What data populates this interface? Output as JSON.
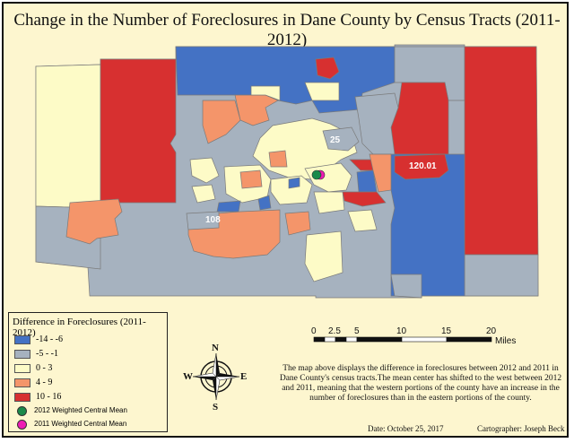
{
  "title": "Change in the Number of Foreclosures in Dane County by Census Tracts (2011-2012)",
  "legend": {
    "heading": "Difference in Foreclosures (2011-2012)",
    "classes": [
      {
        "label": "-14 - -6",
        "color": "#4472c4"
      },
      {
        "label": "-5 - -1",
        "color": "#a6b2bf"
      },
      {
        "label": "0 - 3",
        "color": "#fdfbc7"
      },
      {
        "label": "4 - 9",
        "color": "#f4956a"
      },
      {
        "label": "10 - 16",
        "color": "#d73030"
      }
    ],
    "points": [
      {
        "label": "2012 Weighted Central Mean",
        "color": "#1a8a4a"
      },
      {
        "label": "2011 Weighted Central Mean",
        "color": "#ee1cb4"
      }
    ]
  },
  "tract_labels": [
    "25",
    "120.01",
    "108"
  ],
  "scale_bar": {
    "ticks": [
      "0",
      "2.5",
      "5",
      "10",
      "15",
      "20"
    ],
    "unit": "Miles"
  },
  "north_arrow": {
    "n": "N",
    "s": "S",
    "e": "E",
    "w": "W"
  },
  "description": "The map above displays the difference in foreclosures between 2012 and 2011 in Dane County's census tracts.The mean center has shifted to the west between 2012 and 2011, meaning that the western portions of the county have an increase in the number of foreclosures than in the eastern portions of the county.",
  "footer": {
    "date": "Date: October 25, 2017",
    "cartographer": "Cartographer: Joseph Beck"
  }
}
